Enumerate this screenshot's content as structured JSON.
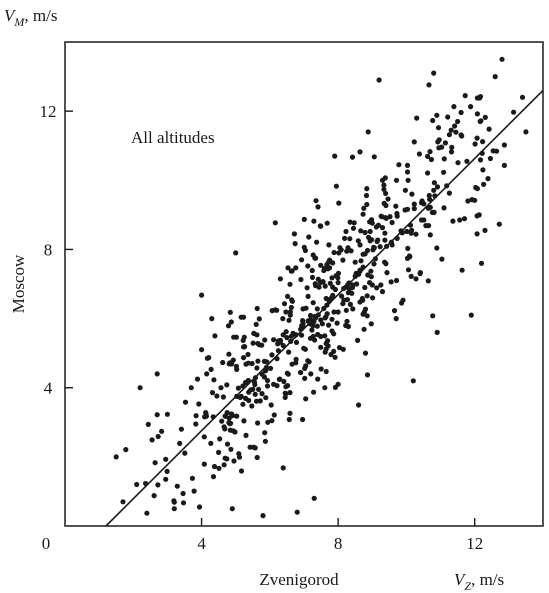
{
  "chart_data": {
    "type": "scatter",
    "title": "",
    "annotation": "All altitudes",
    "xlabel": "Zvenigorod",
    "ylabel": "Moscow",
    "x_unit_label": {
      "var": "V",
      "sub": "Z",
      "unit": ", m/s"
    },
    "y_unit_label": {
      "var": "V",
      "sub": "M",
      "unit": ", m/s"
    },
    "xlim": [
      0,
      14
    ],
    "ylim": [
      0,
      14
    ],
    "xticks": [
      4,
      8,
      12
    ],
    "yticks": [
      4,
      8,
      12
    ],
    "origin_label": "0",
    "grid": false,
    "point_color": "#1a1a1a",
    "line_color": "#1a1a1a",
    "regression_line": [
      {
        "x": 1.2,
        "y": 0
      },
      {
        "x": 14,
        "y": 12.6
      }
    ],
    "point_cloud": {
      "count": 600,
      "seed": 20240517,
      "slope": 1.0,
      "intercept": -1.2,
      "x_range": [
        1.5,
        13.5
      ],
      "y_range": [
        0.3,
        13.5
      ],
      "spread_sd": 1.2
    },
    "points": [
      {
        "x": 5.0,
        "y": 7.9
      },
      {
        "x": 9.2,
        "y": 12.9
      },
      {
        "x": 10.8,
        "y": 13.1
      },
      {
        "x": 12.6,
        "y": 13.0
      },
      {
        "x": 12.8,
        "y": 13.5
      },
      {
        "x": 13.4,
        "y": 12.4
      },
      {
        "x": 13.5,
        "y": 11.4
      },
      {
        "x": 12.2,
        "y": 7.6
      },
      {
        "x": 11.9,
        "y": 6.1
      },
      {
        "x": 10.9,
        "y": 5.6
      },
      {
        "x": 10.2,
        "y": 4.2
      },
      {
        "x": 8.6,
        "y": 3.5
      },
      {
        "x": 7.3,
        "y": 0.8
      },
      {
        "x": 6.8,
        "y": 0.4
      },
      {
        "x": 5.8,
        "y": 0.3
      },
      {
        "x": 4.9,
        "y": 0.5
      },
      {
        "x": 3.2,
        "y": 0.5
      },
      {
        "x": 1.7,
        "y": 0.7
      },
      {
        "x": 1.5,
        "y": 2.0
      },
      {
        "x": 2.2,
        "y": 4.0
      },
      {
        "x": 2.7,
        "y": 4.4
      },
      {
        "x": 4.3,
        "y": 6.0
      },
      {
        "x": 7.9,
        "y": 10.7
      },
      {
        "x": 10.3,
        "y": 11.8
      },
      {
        "x": 11.5,
        "y": 11.7
      },
      {
        "x": 11.1,
        "y": 9.2
      },
      {
        "x": 11.8,
        "y": 9.4
      },
      {
        "x": 10.4,
        "y": 7.3
      },
      {
        "x": 9.7,
        "y": 6.0
      },
      {
        "x": 8.0,
        "y": 4.1
      }
    ]
  }
}
